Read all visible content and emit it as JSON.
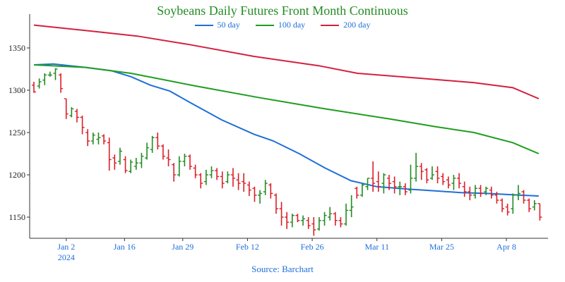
{
  "title": "Soybeans Daily Futures Front Month Continuous",
  "source": "Source: Barchart",
  "colors": {
    "up": "#228B22",
    "down": "#DC1E28",
    "ma50": "#1E6FD9",
    "ma100": "#1E9E1E",
    "ma200": "#D42040",
    "axis": "#333333",
    "title": "#228B22",
    "tick": "#1E6FD9"
  },
  "chart_data": {
    "type": "line",
    "title": "Soybeans Daily Futures Front Month Continuous",
    "ylim": [
      1125,
      1390
    ],
    "yticks": [
      1150,
      1200,
      1250,
      1300,
      1350
    ],
    "xticks": [
      {
        "label": "Jan 2",
        "sub": "2024",
        "x": 5
      },
      {
        "label": "Jan 16",
        "sub": "",
        "x": 14
      },
      {
        "label": "Jan 29",
        "sub": "",
        "x": 23
      },
      {
        "label": "Feb 12",
        "sub": "",
        "x": 33
      },
      {
        "label": "Feb 26",
        "sub": "",
        "x": 43
      },
      {
        "label": "Mar 11",
        "sub": "",
        "x": 53
      },
      {
        "label": "Mar 25",
        "sub": "",
        "x": 63
      },
      {
        "label": "Apr 8",
        "sub": "",
        "x": 73
      }
    ],
    "legend": {
      "position": "top-center",
      "entries": [
        "50 day",
        "100 day",
        "200 day"
      ]
    },
    "series": [
      {
        "name": "50 day",
        "color": "#1E6FD9",
        "points": [
          [
            0,
            1330
          ],
          [
            3,
            1331
          ],
          [
            8,
            1327
          ],
          [
            12,
            1323
          ],
          [
            15,
            1316
          ],
          [
            18,
            1306
          ],
          [
            21,
            1299
          ],
          [
            24,
            1286
          ],
          [
            29,
            1265
          ],
          [
            34,
            1248
          ],
          [
            37,
            1240
          ],
          [
            41,
            1225
          ],
          [
            45,
            1208
          ],
          [
            49,
            1193
          ],
          [
            53,
            1186
          ],
          [
            58,
            1183
          ],
          [
            62,
            1181
          ],
          [
            66,
            1179
          ],
          [
            70,
            1178
          ],
          [
            75,
            1176
          ],
          [
            78,
            1175
          ]
        ]
      },
      {
        "name": "100 day",
        "color": "#1E9E1E",
        "points": [
          [
            0,
            1330
          ],
          [
            8,
            1327
          ],
          [
            15,
            1320
          ],
          [
            25,
            1305
          ],
          [
            35,
            1291
          ],
          [
            45,
            1278
          ],
          [
            55,
            1266
          ],
          [
            62,
            1257
          ],
          [
            68,
            1250
          ],
          [
            74,
            1238
          ],
          [
            78,
            1225
          ]
        ]
      },
      {
        "name": "200 day",
        "color": "#D42040",
        "points": [
          [
            0,
            1377
          ],
          [
            10,
            1369
          ],
          [
            16,
            1364
          ],
          [
            24,
            1354
          ],
          [
            34,
            1340
          ],
          [
            44,
            1329
          ],
          [
            50,
            1320
          ],
          [
            60,
            1314
          ],
          [
            68,
            1309
          ],
          [
            74,
            1303
          ],
          [
            78,
            1290
          ]
        ]
      }
    ],
    "bars": [
      [
        1306,
        1298,
        1310,
        1297
      ],
      [
        1305,
        1310,
        1314,
        1302
      ],
      [
        1312,
        1318,
        1320,
        1306
      ],
      [
        1318,
        1318,
        1322,
        1316
      ],
      [
        1320,
        1325,
        1326,
        1312
      ],
      [
        1318,
        1302,
        1320,
        1297
      ],
      [
        1290,
        1272,
        1290,
        1266
      ],
      [
        1270,
        1278,
        1280,
        1268
      ],
      [
        1275,
        1268,
        1278,
        1262
      ],
      [
        1268,
        1256,
        1270,
        1248
      ],
      [
        1250,
        1240,
        1254,
        1234
      ],
      [
        1240,
        1247,
        1250,
        1236
      ],
      [
        1242,
        1244,
        1250,
        1236
      ],
      [
        1246,
        1240,
        1248,
        1236
      ],
      [
        1238,
        1218,
        1244,
        1205
      ],
      [
        1220,
        1214,
        1224,
        1206
      ],
      [
        1216,
        1228,
        1232,
        1212
      ],
      [
        1218,
        1205,
        1222,
        1202
      ],
      [
        1204,
        1215,
        1218,
        1202
      ],
      [
        1210,
        1214,
        1220,
        1206
      ],
      [
        1214,
        1222,
        1226,
        1208
      ],
      [
        1220,
        1232,
        1238,
        1218
      ],
      [
        1230,
        1244,
        1246,
        1226
      ],
      [
        1244,
        1234,
        1250,
        1230
      ],
      [
        1234,
        1222,
        1236,
        1218
      ],
      [
        1220,
        1218,
        1230,
        1210
      ],
      [
        1212,
        1200,
        1214,
        1192
      ],
      [
        1200,
        1216,
        1222,
        1198
      ],
      [
        1216,
        1222,
        1225,
        1210
      ],
      [
        1222,
        1210,
        1224,
        1206
      ],
      [
        1208,
        1200,
        1212,
        1196
      ],
      [
        1200,
        1190,
        1202,
        1184
      ],
      [
        1192,
        1200,
        1206,
        1188
      ],
      [
        1200,
        1205,
        1210,
        1196
      ],
      [
        1205,
        1198,
        1208,
        1194
      ],
      [
        1198,
        1190,
        1204,
        1184
      ],
      [
        1192,
        1200,
        1204,
        1190
      ],
      [
        1200,
        1196,
        1208,
        1186
      ],
      [
        1194,
        1190,
        1202,
        1182
      ],
      [
        1192,
        1190,
        1202,
        1180
      ],
      [
        1188,
        1182,
        1192,
        1175
      ],
      [
        1184,
        1176,
        1186,
        1168
      ],
      [
        1176,
        1178,
        1182,
        1166
      ],
      [
        1180,
        1190,
        1194,
        1176
      ],
      [
        1188,
        1178,
        1190,
        1172
      ],
      [
        1176,
        1160,
        1178,
        1154
      ],
      [
        1160,
        1150,
        1168,
        1140
      ],
      [
        1150,
        1144,
        1156,
        1136
      ],
      [
        1144,
        1152,
        1154,
        1138
      ],
      [
        1152,
        1146,
        1154,
        1144
      ],
      [
        1146,
        1148,
        1152,
        1140
      ],
      [
        1146,
        1140,
        1150,
        1136
      ],
      [
        1142,
        1135,
        1150,
        1128
      ],
      [
        1136,
        1146,
        1150,
        1134
      ],
      [
        1146,
        1152,
        1156,
        1140
      ],
      [
        1150,
        1154,
        1162,
        1146
      ],
      [
        1154,
        1146,
        1156,
        1140
      ],
      [
        1146,
        1142,
        1150,
        1138
      ],
      [
        1142,
        1158,
        1166,
        1140
      ],
      [
        1158,
        1162,
        1176,
        1150
      ],
      [
        1184,
        1176,
        1186,
        1172
      ],
      [
        1176,
        1188,
        1190,
        1174
      ],
      [
        1186,
        1196,
        1196,
        1182
      ],
      [
        1196,
        1190,
        1216,
        1180
      ],
      [
        1192,
        1186,
        1204,
        1180
      ],
      [
        1190,
        1200,
        1202,
        1178
      ],
      [
        1196,
        1190,
        1200,
        1182
      ],
      [
        1192,
        1186,
        1198,
        1178
      ],
      [
        1186,
        1186,
        1192,
        1176
      ],
      [
        1186,
        1180,
        1190,
        1176
      ],
      [
        1182,
        1196,
        1212,
        1178
      ],
      [
        1196,
        1210,
        1226,
        1192
      ],
      [
        1210,
        1204,
        1214,
        1194
      ],
      [
        1206,
        1194,
        1208,
        1190
      ],
      [
        1196,
        1200,
        1210,
        1194
      ],
      [
        1204,
        1196,
        1210,
        1190
      ],
      [
        1198,
        1192,
        1202,
        1188
      ],
      [
        1194,
        1188,
        1198,
        1184
      ],
      [
        1190,
        1196,
        1200,
        1182
      ],
      [
        1196,
        1190,
        1202,
        1184
      ],
      [
        1186,
        1180,
        1192,
        1174
      ],
      [
        1180,
        1176,
        1186,
        1170
      ],
      [
        1176,
        1184,
        1188,
        1172
      ],
      [
        1184,
        1178,
        1188,
        1174
      ],
      [
        1180,
        1184,
        1186,
        1176
      ],
      [
        1182,
        1176,
        1186,
        1172
      ],
      [
        1176,
        1170,
        1180,
        1166
      ],
      [
        1170,
        1160,
        1172,
        1156
      ],
      [
        1162,
        1156,
        1166,
        1152
      ],
      [
        1160,
        1176,
        1178,
        1154
      ],
      [
        1176,
        1178,
        1188,
        1170
      ],
      [
        1180,
        1170,
        1182,
        1166
      ],
      [
        1170,
        1160,
        1172,
        1156
      ],
      [
        1162,
        1166,
        1170,
        1158
      ],
      [
        1166,
        1150,
        1166,
        1146
      ]
    ]
  }
}
